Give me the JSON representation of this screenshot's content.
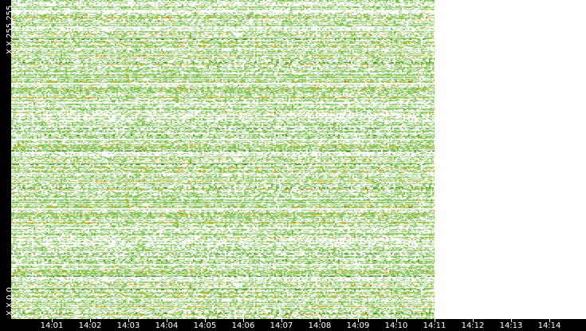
{
  "chart_data": {
    "type": "heatmap",
    "title": "",
    "xlabel": "",
    "ylabel": "",
    "y_tick_labels": [
      "X.X.255.255",
      "X.X.0.0"
    ],
    "x_tick_labels": [
      "14:01",
      "14:02",
      "14:03",
      "14:04",
      "14:05",
      "14:06",
      "14:07",
      "14:08",
      "14:09",
      "14:10",
      "14:11",
      "14:12",
      "14:13",
      "14:14"
    ],
    "data_end": "14:11",
    "colors": {
      "empty": "#ffffff",
      "low": "#99cc77",
      "medium": "#66bb22",
      "high": "#ffaa00",
      "very_high": "#ff3300",
      "dark": "#226600"
    }
  }
}
